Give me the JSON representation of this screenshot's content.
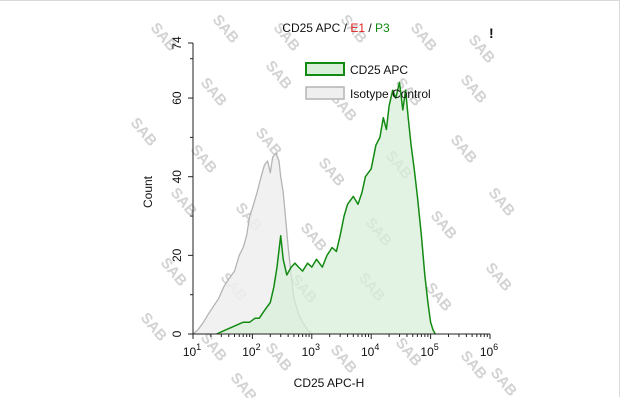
{
  "chart_data": {
    "type": "area",
    "title": {
      "parts": [
        {
          "text": "CD25 APC",
          "color": "#111111"
        },
        {
          "text": " / ",
          "color": "#111111"
        },
        {
          "text": "E1",
          "color": "#e02020"
        },
        {
          "text": " / ",
          "color": "#111111"
        },
        {
          "text": "P3",
          "color": "#138a13"
        }
      ]
    },
    "corner_mark": "!",
    "xlabel": "CD25 APC-H",
    "ylabel": "Count",
    "x_scale": "log",
    "xlim": [
      10,
      1000000
    ],
    "ylim": [
      0,
      74
    ],
    "x_ticks": [
      {
        "value": 10,
        "base": "10",
        "exp": "1"
      },
      {
        "value": 100,
        "base": "10",
        "exp": "2"
      },
      {
        "value": 1000,
        "base": "10",
        "exp": "3"
      },
      {
        "value": 10000,
        "base": "10",
        "exp": "4"
      },
      {
        "value": 100000,
        "base": "10",
        "exp": "5"
      },
      {
        "value": 1000000,
        "base": "10",
        "exp": "6"
      }
    ],
    "y_ticks": [
      {
        "value": 0,
        "label": "0"
      },
      {
        "value": 20,
        "label": "20"
      },
      {
        "value": 40,
        "label": "40"
      },
      {
        "value": 60,
        "label": "60"
      },
      {
        "value": 74,
        "label": "74"
      }
    ],
    "legend": {
      "placement": "top-right"
    },
    "watermark": "SAB",
    "series": [
      {
        "name": "Isotype Control",
        "color": "#b4b4b4",
        "fill": "#efefef",
        "points": [
          [
            10,
            0
          ],
          [
            12,
            1
          ],
          [
            15,
            3
          ],
          [
            18,
            5
          ],
          [
            22,
            7
          ],
          [
            27,
            9
          ],
          [
            33,
            12
          ],
          [
            40,
            14
          ],
          [
            50,
            16
          ],
          [
            60,
            20
          ],
          [
            70,
            22
          ],
          [
            80,
            25
          ],
          [
            90,
            30
          ],
          [
            100,
            32
          ],
          [
            120,
            36
          ],
          [
            140,
            40
          ],
          [
            160,
            43
          ],
          [
            180,
            44
          ],
          [
            200,
            41
          ],
          [
            220,
            45
          ],
          [
            250,
            46
          ],
          [
            280,
            44
          ],
          [
            300,
            40
          ],
          [
            330,
            36
          ],
          [
            360,
            30
          ],
          [
            400,
            22
          ],
          [
            450,
            15
          ],
          [
            500,
            9
          ],
          [
            600,
            5
          ],
          [
            700,
            3
          ],
          [
            850,
            1
          ],
          [
            1000,
            0
          ]
        ]
      },
      {
        "name": "CD25 APC",
        "color": "#138a13",
        "fill": "#daefda",
        "points": [
          [
            25,
            0
          ],
          [
            35,
            1
          ],
          [
            50,
            2
          ],
          [
            70,
            3
          ],
          [
            90,
            3
          ],
          [
            110,
            4
          ],
          [
            130,
            4
          ],
          [
            160,
            6
          ],
          [
            200,
            8
          ],
          [
            230,
            12
          ],
          [
            260,
            17
          ],
          [
            300,
            25
          ],
          [
            330,
            19
          ],
          [
            380,
            15
          ],
          [
            450,
            17
          ],
          [
            520,
            18
          ],
          [
            600,
            17
          ],
          [
            700,
            16
          ],
          [
            850,
            18
          ],
          [
            1000,
            17
          ],
          [
            1200,
            19
          ],
          [
            1500,
            17
          ],
          [
            1800,
            20
          ],
          [
            2200,
            22
          ],
          [
            2600,
            21
          ],
          [
            3000,
            25
          ],
          [
            3500,
            30
          ],
          [
            4000,
            33
          ],
          [
            5000,
            35
          ],
          [
            6000,
            33
          ],
          [
            7000,
            36
          ],
          [
            8000,
            40
          ],
          [
            10000,
            42
          ],
          [
            12000,
            48
          ],
          [
            14000,
            50
          ],
          [
            16000,
            55
          ],
          [
            18000,
            52
          ],
          [
            20000,
            58
          ],
          [
            23000,
            62
          ],
          [
            26000,
            60
          ],
          [
            30000,
            64
          ],
          [
            34000,
            57
          ],
          [
            38000,
            62
          ],
          [
            42000,
            55
          ],
          [
            47000,
            48
          ],
          [
            53000,
            42
          ],
          [
            60000,
            35
          ],
          [
            70000,
            25
          ],
          [
            80000,
            15
          ],
          [
            90000,
            8
          ],
          [
            100000,
            3
          ],
          [
            110000,
            1
          ],
          [
            120000,
            0
          ]
        ]
      }
    ]
  }
}
